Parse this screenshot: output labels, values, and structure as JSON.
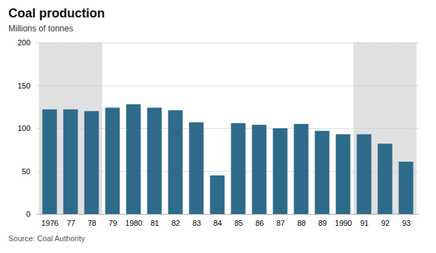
{
  "chart_data": {
    "type": "bar",
    "title": "Coal production",
    "ylabel": "Millions of tonnes",
    "source": "Source: Coal Authority",
    "categories": [
      "1976",
      "77",
      "78",
      "79",
      "1980",
      "81",
      "82",
      "83",
      "84",
      "85",
      "86",
      "87",
      "88",
      "89",
      "1990",
      "91",
      "92",
      "93"
    ],
    "values": [
      122,
      122,
      120,
      124,
      128,
      124,
      121,
      107,
      45,
      106,
      104,
      100,
      105,
      97,
      93,
      93,
      82,
      61
    ],
    "color": "#2e6b8a",
    "shaded": [
      {
        "from": "1976",
        "to": "78"
      },
      {
        "from": "91",
        "to": "93"
      }
    ],
    "ylim": [
      0,
      200
    ],
    "yticks": [
      0,
      50,
      100,
      150,
      200
    ],
    "grid": true
  }
}
